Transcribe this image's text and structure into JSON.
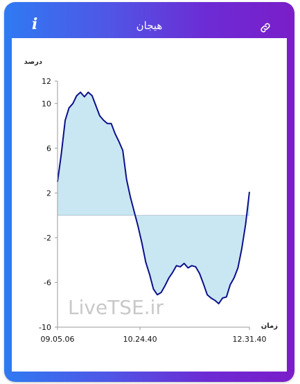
{
  "header": {
    "title": "هیجان",
    "info_icon": "info-icon",
    "link_icon": "link-icon"
  },
  "colors": {
    "gradient_start": "#2f7af2",
    "gradient_end": "#7a1ec9",
    "line": "#0b0f8a",
    "fill": "#c9e7f2",
    "watermark": "#c8c8c8"
  },
  "chart_data": {
    "type": "area",
    "ylabel": "درصد",
    "xlabel": "زمان",
    "ylim": [
      -10,
      12
    ],
    "y_ticks": [
      12,
      10,
      6,
      2,
      -2,
      -6,
      -10
    ],
    "y_tick_labels": [
      "12",
      "10",
      "6",
      "2",
      "-2",
      "-6",
      "-10"
    ],
    "x_tick_labels": [
      "09.05.06",
      "10.24.40",
      "12.31.40"
    ],
    "x_tick_positions": [
      0,
      0.43,
      1
    ],
    "grid": false,
    "baseline": 0,
    "watermark": "LiveTSE.ir",
    "series": [
      {
        "x": [
          0,
          0.02,
          0.04,
          0.06,
          0.08,
          0.1,
          0.12,
          0.14,
          0.16,
          0.18,
          0.2,
          0.22,
          0.24,
          0.26,
          0.28,
          0.3,
          0.32,
          0.34,
          0.36,
          0.38,
          0.4,
          0.42,
          0.44,
          0.46,
          0.48,
          0.5,
          0.52,
          0.54,
          0.56,
          0.58,
          0.6,
          0.62,
          0.64,
          0.66,
          0.68,
          0.7,
          0.72,
          0.74,
          0.76,
          0.78,
          0.8,
          0.82,
          0.84,
          0.86,
          0.88,
          0.9,
          0.92,
          0.94,
          0.96,
          0.98,
          1.0
        ],
        "values": [
          3,
          5.5,
          8.5,
          9.6,
          10,
          10.7,
          11,
          10.6,
          11,
          10.7,
          9.8,
          8.9,
          8.5,
          8.2,
          8.2,
          7.3,
          6.6,
          5.8,
          3.2,
          1.6,
          0.3,
          -1,
          -2.5,
          -4.2,
          -5.3,
          -6.6,
          -7.1,
          -6.9,
          -6.3,
          -5.6,
          -5.1,
          -4.5,
          -4.6,
          -4.3,
          -4.7,
          -4.5,
          -4.6,
          -5.2,
          -6.1,
          -7.1,
          -7.4,
          -7.6,
          -7.9,
          -7.4,
          -7.3,
          -6.2,
          -5.6,
          -4.7,
          -3,
          -0.8,
          2.1
        ]
      }
    ]
  }
}
